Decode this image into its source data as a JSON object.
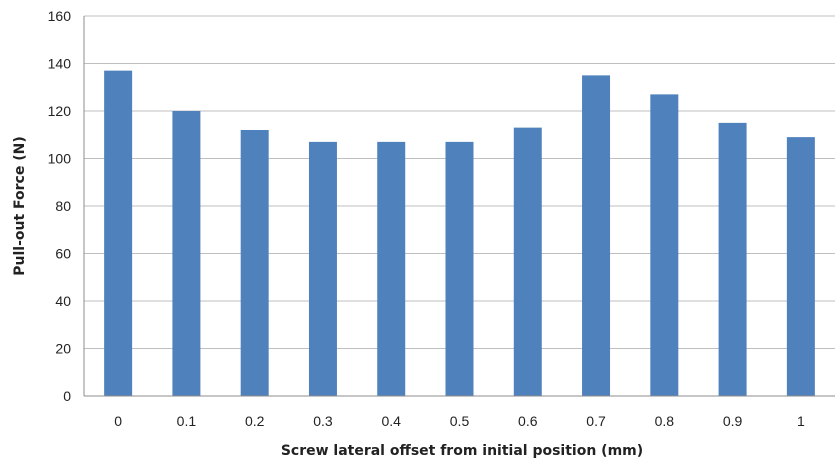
{
  "chart_data": {
    "type": "bar",
    "categories": [
      "0",
      "0.1",
      "0.2",
      "0.3",
      "0.4",
      "0.5",
      "0.6",
      "0.7",
      "0.8",
      "0.9",
      "1"
    ],
    "series": [
      {
        "values": [
          137,
          120,
          112,
          107,
          107,
          107,
          113,
          135,
          127,
          115,
          109
        ]
      }
    ],
    "title": "",
    "xlabel": "Screw lateral offset from initial position (mm)",
    "ylabel": "Pull-out Force (N)",
    "ylim": [
      0,
      160
    ],
    "yticks": [
      "0",
      "20",
      "40",
      "60",
      "80",
      "100",
      "120",
      "140",
      "160"
    ],
    "grid": true,
    "legend": "none",
    "bar_color": "#4f81bd",
    "grid_color": "#bfbfbf"
  }
}
